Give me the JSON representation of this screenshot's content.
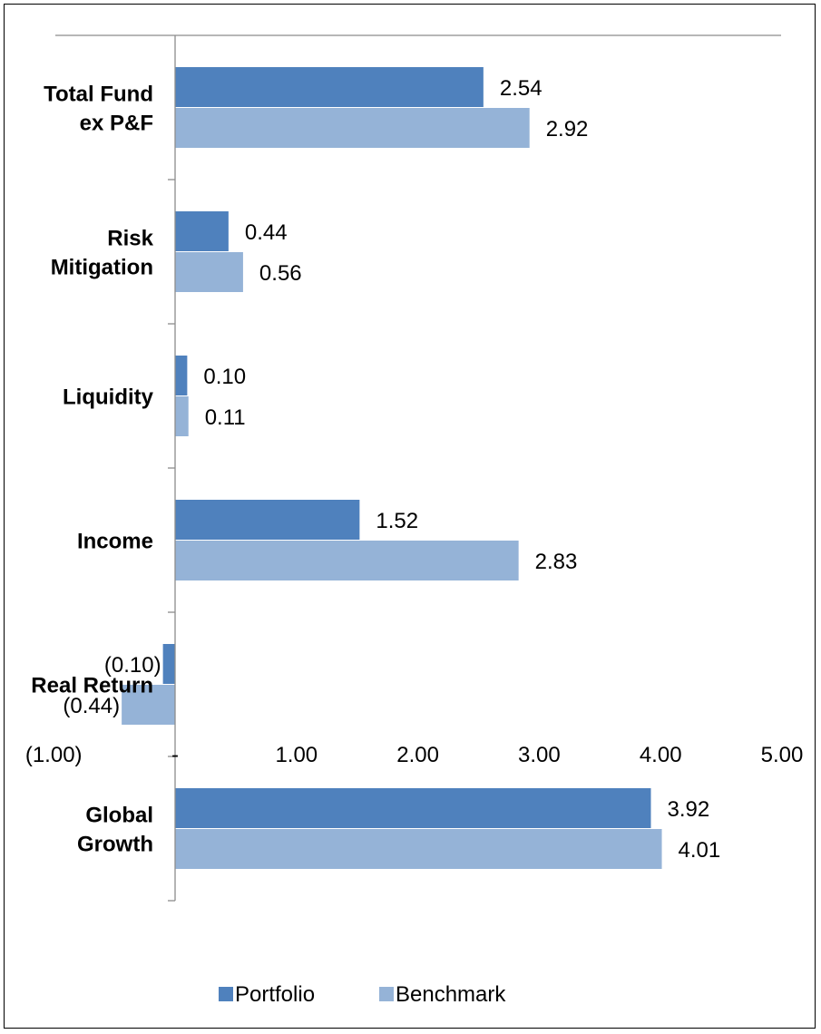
{
  "chart_data": {
    "type": "bar",
    "orientation": "horizontal",
    "title": "",
    "xlabel": "",
    "ylabel": "",
    "categories": [
      "Total Fund ex P&F",
      "Risk Mitigation",
      "Liquidity",
      "Income",
      "Real Return",
      "Global Growth"
    ],
    "category_label_lines": [
      [
        "Total Fund",
        "ex P&F"
      ],
      [
        "Risk",
        "Mitigation"
      ],
      [
        "Liquidity"
      ],
      [
        "Income"
      ],
      [
        "Real Return"
      ],
      [
        "Global",
        "Growth"
      ]
    ],
    "series": [
      {
        "name": "Portfolio",
        "color": "#4F81BD",
        "values": [
          2.54,
          0.44,
          0.1,
          1.52,
          -0.1,
          3.92
        ],
        "labels": [
          "2.54",
          "0.44",
          "0.10",
          "1.52",
          "(0.10)",
          "3.92"
        ]
      },
      {
        "name": "Benchmark",
        "color": "#95B3D7",
        "values": [
          2.92,
          0.56,
          0.11,
          2.83,
          -0.44,
          4.01
        ],
        "labels": [
          "2.92",
          "0.56",
          "0.11",
          "2.83",
          "(0.44)",
          "4.01"
        ]
      }
    ],
    "xlim": [
      -1,
      5
    ],
    "xticks": [
      -1,
      0,
      1,
      2,
      3,
      4,
      5
    ],
    "xtick_labels": [
      "(1.00)",
      "-",
      "1.00",
      "2.00",
      "3.00",
      "4.00",
      "5.00"
    ],
    "grid": false,
    "legend_position": "bottom"
  }
}
